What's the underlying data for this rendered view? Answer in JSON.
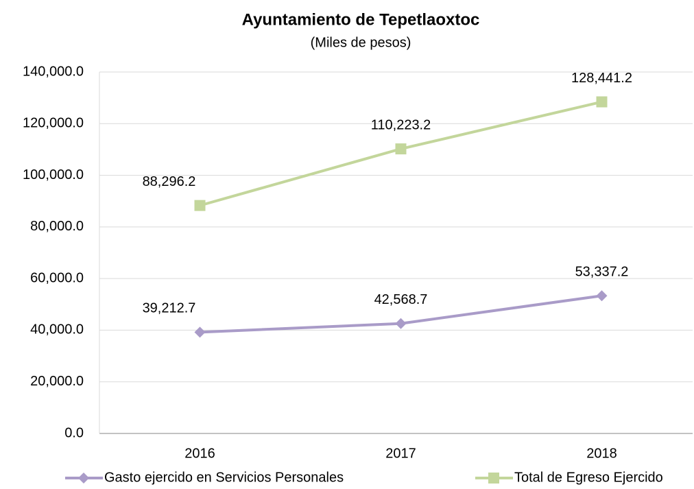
{
  "chart_data": {
    "type": "line",
    "title": "Ayuntamiento de Tepetlaoxtoc",
    "subtitle": "(Miles de pesos)",
    "categories": [
      "2016",
      "2017",
      "2018"
    ],
    "series": [
      {
        "name": "Gasto ejercido en Servicios Personales",
        "color": "#a99bc8",
        "marker": "diamond",
        "values": [
          39212.7,
          42568.7,
          53337.2
        ],
        "value_labels": [
          "39,212.7",
          "42,568.7",
          "53,337.2"
        ]
      },
      {
        "name": "Total de Egreso Ejercido",
        "color": "#c3d69b",
        "marker": "square",
        "values": [
          88296.2,
          110223.2,
          128441.2
        ],
        "value_labels": [
          "88,296.2",
          "110,223.2",
          "128,441.2"
        ]
      }
    ],
    "ylim": [
      0,
      140000
    ],
    "yticks": [
      {
        "value": 0,
        "label": "0.0"
      },
      {
        "value": 20000,
        "label": "20,000.0"
      },
      {
        "value": 40000,
        "label": "40,000.0"
      },
      {
        "value": 60000,
        "label": "60,000.0"
      },
      {
        "value": 80000,
        "label": "80,000.0"
      },
      {
        "value": 100000,
        "label": "100,000.0"
      },
      {
        "value": 120000,
        "label": "120,000.0"
      },
      {
        "value": 140000,
        "label": "140,000.0"
      }
    ],
    "grid": true,
    "legend": "bottom"
  }
}
